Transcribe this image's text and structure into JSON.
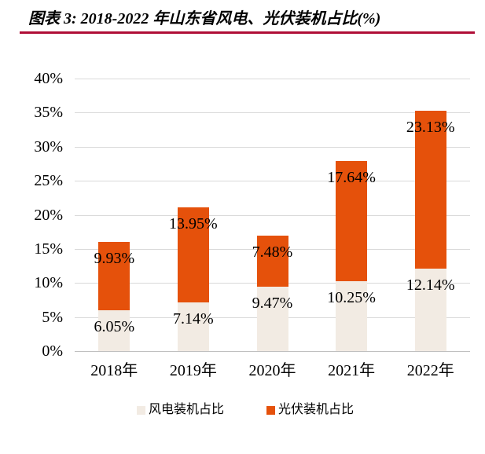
{
  "header": {
    "title": "图表 3: 2018-2022 年山东省风电、光伏装机占比(%)"
  },
  "colors": {
    "accent_rule": "#B00E36",
    "wind": "#F2EBE3",
    "solar": "#E5510B",
    "gridline": "#D9D9D9",
    "axis_line": "#C0C0C0",
    "text": "#000000"
  },
  "chart_data": {
    "type": "bar",
    "stacked": true,
    "title": "图表 3: 2018-2022 年山东省风电、光伏装机占比(%)",
    "categories": [
      "2018年",
      "2019年",
      "2020年",
      "2021年",
      "2022年"
    ],
    "series": [
      {
        "name": "风电装机占比",
        "color": "#F2EBE3",
        "values": [
          6.05,
          7.14,
          9.47,
          10.25,
          12.14
        ],
        "labels": [
          "6.05%",
          "7.14%",
          "9.47%",
          "10.25%",
          "12.14%"
        ]
      },
      {
        "name": "光伏装机占比",
        "color": "#E5510B",
        "values": [
          9.93,
          13.95,
          7.48,
          17.64,
          23.13
        ],
        "labels": [
          "9.93%",
          "13.95%",
          "7.48%",
          "17.64%",
          "23.13%"
        ]
      }
    ],
    "xlabel": "",
    "ylabel": "",
    "ylim": [
      0,
      40
    ],
    "ytick_step": 5,
    "ytick_labels": [
      "0%",
      "5%",
      "10%",
      "15%",
      "20%",
      "25%",
      "30%",
      "35%",
      "40%"
    ],
    "grid": true,
    "legend_position": "bottom",
    "data_label_position": "inside-end"
  }
}
